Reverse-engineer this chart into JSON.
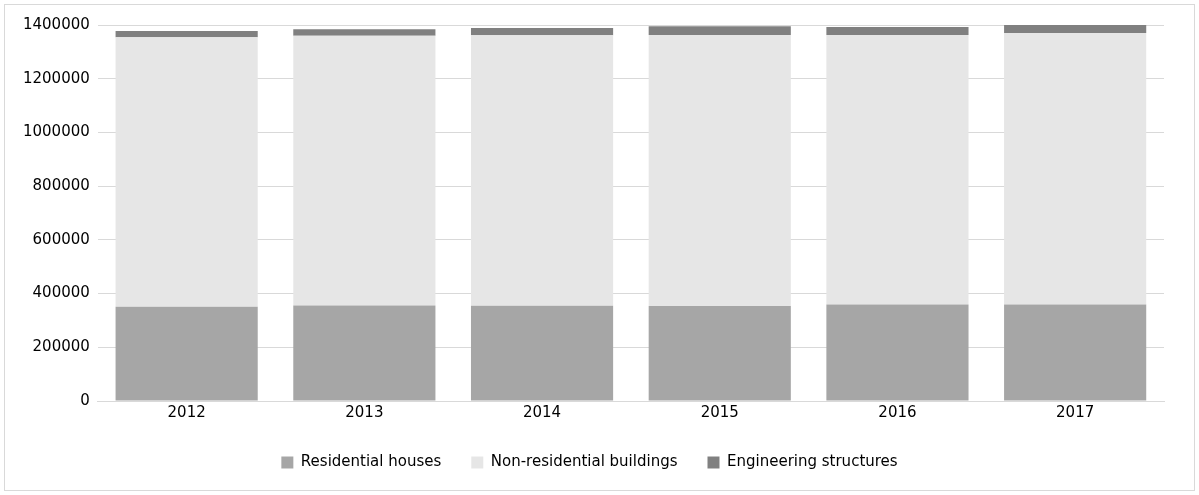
{
  "chart_data": {
    "type": "bar",
    "stacked": true,
    "categories": [
      "2012",
      "2013",
      "2014",
      "2015",
      "2016",
      "2017"
    ],
    "series": [
      {
        "name": "Residential houses",
        "color": "#a6a6a6",
        "values": [
          351000,
          356000,
          355000,
          354000,
          359000,
          359000
        ]
      },
      {
        "name": "Non-residential buildings",
        "color": "#e6e6e6",
        "values": [
          1003000,
          1004000,
          1007000,
          1009000,
          1004000,
          1011000
        ]
      },
      {
        "name": "Engineering structures",
        "color": "#808080",
        "values": [
          24000,
          24000,
          27000,
          32000,
          30000,
          30000
        ]
      }
    ],
    "ylim": [
      0,
      1400000
    ],
    "yticks": [
      0,
      200000,
      400000,
      600000,
      800000,
      1000000,
      1200000,
      1400000
    ],
    "grid": "y",
    "legend": "bottom"
  }
}
